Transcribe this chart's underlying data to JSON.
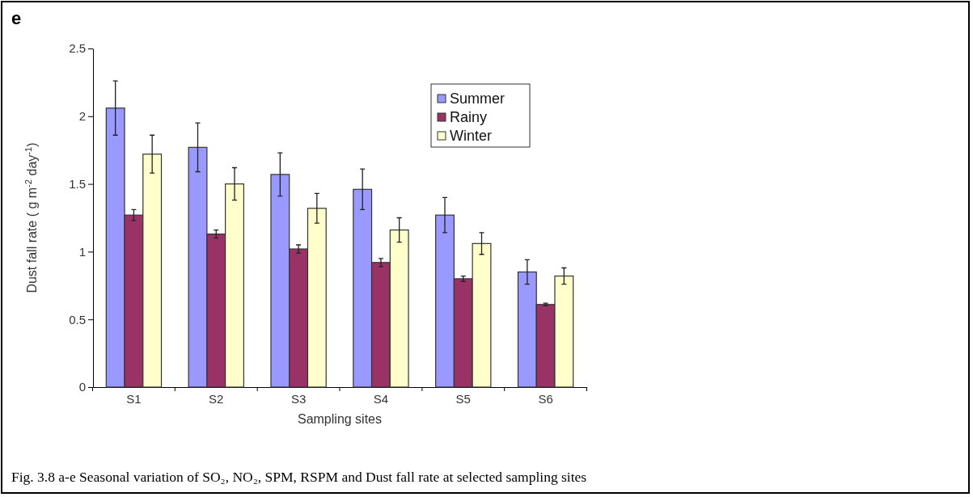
{
  "chart_data": {
    "type": "bar",
    "xlabel": "Sampling sites",
    "ylabel": "Dust fall rate ( g m$^{-2}$ day$^{-1}$)",
    "categories": [
      "S1",
      "S2",
      "S3",
      "S4",
      "S5",
      "S6"
    ],
    "series": [
      {
        "name": "Summer",
        "color": "#9999ff",
        "values": [
          2.06,
          1.77,
          1.57,
          1.46,
          1.27,
          0.85
        ],
        "errors": [
          0.2,
          0.18,
          0.16,
          0.15,
          0.13,
          0.09
        ]
      },
      {
        "name": "Rainy",
        "color": "#993366",
        "values": [
          1.27,
          1.13,
          1.02,
          0.92,
          0.8,
          0.61
        ],
        "errors": [
          0.04,
          0.03,
          0.03,
          0.03,
          0.02,
          0.01
        ]
      },
      {
        "name": "Winter",
        "color": "#ffffcc",
        "values": [
          1.72,
          1.5,
          1.32,
          1.16,
          1.06,
          0.82
        ],
        "errors": [
          0.14,
          0.12,
          0.11,
          0.09,
          0.08,
          0.06
        ]
      }
    ],
    "ylim": [
      0,
      2.5
    ],
    "yticks": [
      0,
      {
        "value": 0.5,
        "label": "0.5"
      },
      1,
      {
        "value": 1.5,
        "label": "1.5"
      },
      2,
      {
        "value": 2.5,
        "label": "2.5"
      }
    ],
    "grid": false,
    "legend": "top right",
    "annotations": [
      "e",
      "Fig. 3.8 a-e Seasonal variation of SO₂, NO₂, SPM, RSPM and Dust fall rate at selected sampling sites"
    ]
  }
}
